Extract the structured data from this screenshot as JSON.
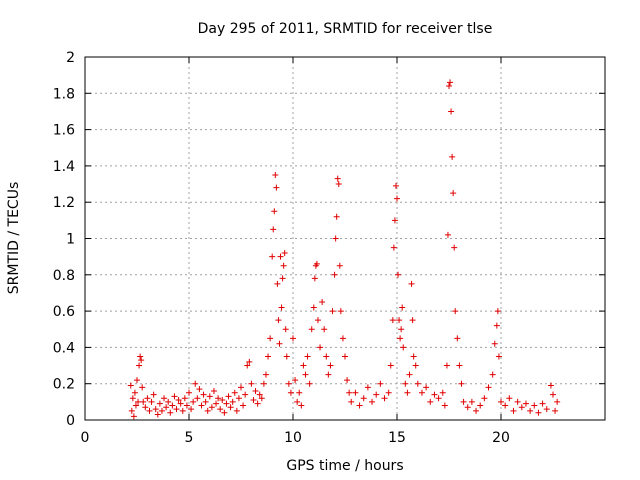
{
  "chart_data": {
    "type": "scatter",
    "title": "Day 295 of 2011, SRMTID for receiver tlse",
    "xlabel": "GPS time / hours",
    "ylabel": "SRMTID / TECUs",
    "xlim": [
      0,
      25
    ],
    "ylim": [
      0,
      2
    ],
    "xticks": [
      0,
      5,
      10,
      15,
      20
    ],
    "xtick_labels": [
      "0",
      "5",
      "10",
      "15",
      "20"
    ],
    "yticks": [
      0,
      0.2,
      0.4,
      0.6,
      0.8,
      1,
      1.2,
      1.4,
      1.6,
      1.8,
      2
    ],
    "ytick_labels": [
      "0",
      "0.2",
      "0.4",
      "0.6",
      "0.8",
      "1",
      "1.2",
      "1.4",
      "1.6",
      "1.8",
      "2"
    ],
    "grid": true,
    "marker": "+",
    "color": "#e00000",
    "series": [
      {
        "name": "SRMTID",
        "points": [
          [
            2.2,
            0.19
          ],
          [
            2.25,
            0.05
          ],
          [
            2.3,
            0.12
          ],
          [
            2.35,
            0.02
          ],
          [
            2.4,
            0.15
          ],
          [
            2.45,
            0.08
          ],
          [
            2.5,
            0.22
          ],
          [
            2.55,
            0.1
          ],
          [
            2.6,
            0.3
          ],
          [
            2.65,
            0.35
          ],
          [
            2.7,
            0.33
          ],
          [
            2.75,
            0.18
          ],
          [
            2.8,
            0.1
          ],
          [
            2.9,
            0.07
          ],
          [
            3.0,
            0.12
          ],
          [
            3.1,
            0.05
          ],
          [
            3.2,
            0.1
          ],
          [
            3.3,
            0.14
          ],
          [
            3.4,
            0.06
          ],
          [
            3.5,
            0.03
          ],
          [
            3.6,
            0.09
          ],
          [
            3.7,
            0.05
          ],
          [
            3.8,
            0.12
          ],
          [
            3.9,
            0.07
          ],
          [
            4.0,
            0.1
          ],
          [
            4.1,
            0.04
          ],
          [
            4.2,
            0.08
          ],
          [
            4.3,
            0.13
          ],
          [
            4.4,
            0.06
          ],
          [
            4.5,
            0.11
          ],
          [
            4.6,
            0.09
          ],
          [
            4.7,
            0.05
          ],
          [
            4.8,
            0.12
          ],
          [
            4.9,
            0.08
          ],
          [
            5.0,
            0.15
          ],
          [
            5.1,
            0.06
          ],
          [
            5.2,
            0.1
          ],
          [
            5.3,
            0.2
          ],
          [
            5.4,
            0.12
          ],
          [
            5.5,
            0.17
          ],
          [
            5.6,
            0.08
          ],
          [
            5.7,
            0.14
          ],
          [
            5.8,
            0.1
          ],
          [
            5.9,
            0.05
          ],
          [
            6.0,
            0.13
          ],
          [
            6.1,
            0.07
          ],
          [
            6.2,
            0.16
          ],
          [
            6.3,
            0.09
          ],
          [
            6.4,
            0.12
          ],
          [
            6.5,
            0.06
          ],
          [
            6.6,
            0.11
          ],
          [
            6.7,
            0.04
          ],
          [
            6.8,
            0.09
          ],
          [
            6.9,
            0.13
          ],
          [
            7.0,
            0.07
          ],
          [
            7.1,
            0.1
          ],
          [
            7.2,
            0.15
          ],
          [
            7.3,
            0.05
          ],
          [
            7.4,
            0.12
          ],
          [
            7.5,
            0.18
          ],
          [
            7.6,
            0.08
          ],
          [
            7.7,
            0.14
          ],
          [
            7.8,
            0.3
          ],
          [
            7.9,
            0.32
          ],
          [
            8.0,
            0.2
          ],
          [
            8.1,
            0.11
          ],
          [
            8.2,
            0.16
          ],
          [
            8.3,
            0.09
          ],
          [
            8.4,
            0.14
          ],
          [
            8.5,
            0.12
          ],
          [
            8.6,
            0.2
          ],
          [
            8.7,
            0.25
          ],
          [
            8.8,
            0.35
          ],
          [
            8.9,
            0.45
          ],
          [
            9.0,
            0.9
          ],
          [
            9.05,
            1.05
          ],
          [
            9.1,
            1.15
          ],
          [
            9.15,
            1.35
          ],
          [
            9.2,
            1.28
          ],
          [
            9.25,
            0.75
          ],
          [
            9.3,
            0.55
          ],
          [
            9.35,
            0.42
          ],
          [
            9.4,
            0.9
          ],
          [
            9.45,
            0.62
          ],
          [
            9.5,
            0.78
          ],
          [
            9.55,
            0.85
          ],
          [
            9.6,
            0.92
          ],
          [
            9.65,
            0.5
          ],
          [
            9.7,
            0.35
          ],
          [
            9.8,
            0.2
          ],
          [
            9.9,
            0.15
          ],
          [
            10.0,
            0.45
          ],
          [
            10.1,
            0.22
          ],
          [
            10.2,
            0.1
          ],
          [
            10.3,
            0.15
          ],
          [
            10.4,
            0.08
          ],
          [
            10.5,
            0.3
          ],
          [
            10.6,
            0.25
          ],
          [
            10.7,
            0.35
          ],
          [
            10.8,
            0.2
          ],
          [
            10.9,
            0.5
          ],
          [
            11.0,
            0.62
          ],
          [
            11.05,
            0.78
          ],
          [
            11.1,
            0.85
          ],
          [
            11.15,
            0.86
          ],
          [
            11.2,
            0.55
          ],
          [
            11.3,
            0.4
          ],
          [
            11.4,
            0.65
          ],
          [
            11.5,
            0.5
          ],
          [
            11.6,
            0.35
          ],
          [
            11.7,
            0.25
          ],
          [
            11.8,
            0.3
          ],
          [
            11.9,
            0.6
          ],
          [
            12.0,
            0.8
          ],
          [
            12.05,
            1.0
          ],
          [
            12.1,
            1.12
          ],
          [
            12.15,
            1.33
          ],
          [
            12.2,
            1.3
          ],
          [
            12.25,
            0.85
          ],
          [
            12.3,
            0.6
          ],
          [
            12.4,
            0.45
          ],
          [
            12.5,
            0.35
          ],
          [
            12.6,
            0.22
          ],
          [
            12.7,
            0.15
          ],
          [
            12.8,
            0.1
          ],
          [
            13.0,
            0.15
          ],
          [
            13.2,
            0.08
          ],
          [
            13.4,
            0.12
          ],
          [
            13.6,
            0.18
          ],
          [
            13.8,
            0.1
          ],
          [
            14.0,
            0.14
          ],
          [
            14.2,
            0.2
          ],
          [
            14.4,
            0.12
          ],
          [
            14.6,
            0.15
          ],
          [
            14.7,
            0.3
          ],
          [
            14.8,
            0.55
          ],
          [
            14.85,
            0.95
          ],
          [
            14.9,
            1.1
          ],
          [
            14.95,
            1.29
          ],
          [
            15.0,
            1.22
          ],
          [
            15.05,
            0.8
          ],
          [
            15.1,
            0.55
          ],
          [
            15.15,
            0.45
          ],
          [
            15.2,
            0.5
          ],
          [
            15.25,
            0.62
          ],
          [
            15.3,
            0.4
          ],
          [
            15.4,
            0.2
          ],
          [
            15.5,
            0.15
          ],
          [
            15.6,
            0.25
          ],
          [
            15.7,
            0.75
          ],
          [
            15.75,
            0.55
          ],
          [
            15.8,
            0.35
          ],
          [
            15.9,
            0.3
          ],
          [
            16.0,
            0.2
          ],
          [
            16.2,
            0.15
          ],
          [
            16.4,
            0.18
          ],
          [
            16.6,
            0.1
          ],
          [
            16.8,
            0.14
          ],
          [
            17.0,
            0.12
          ],
          [
            17.2,
            0.15
          ],
          [
            17.3,
            0.08
          ],
          [
            17.4,
            0.3
          ],
          [
            17.45,
            1.02
          ],
          [
            17.5,
            1.84
          ],
          [
            17.55,
            1.86
          ],
          [
            17.6,
            1.7
          ],
          [
            17.65,
            1.45
          ],
          [
            17.7,
            1.25
          ],
          [
            17.75,
            0.95
          ],
          [
            17.8,
            0.6
          ],
          [
            17.9,
            0.45
          ],
          [
            18.0,
            0.3
          ],
          [
            18.1,
            0.2
          ],
          [
            18.2,
            0.1
          ],
          [
            18.4,
            0.07
          ],
          [
            18.6,
            0.1
          ],
          [
            18.8,
            0.05
          ],
          [
            19.0,
            0.08
          ],
          [
            19.2,
            0.12
          ],
          [
            19.4,
            0.18
          ],
          [
            19.6,
            0.25
          ],
          [
            19.7,
            0.42
          ],
          [
            19.8,
            0.52
          ],
          [
            19.85,
            0.6
          ],
          [
            19.9,
            0.35
          ],
          [
            20.0,
            0.1
          ],
          [
            20.2,
            0.08
          ],
          [
            20.4,
            0.12
          ],
          [
            20.6,
            0.05
          ],
          [
            20.8,
            0.1
          ],
          [
            21.0,
            0.07
          ],
          [
            21.2,
            0.09
          ],
          [
            21.4,
            0.05
          ],
          [
            21.6,
            0.08
          ],
          [
            21.8,
            0.04
          ],
          [
            22.0,
            0.09
          ],
          [
            22.2,
            0.06
          ],
          [
            22.4,
            0.19
          ],
          [
            22.5,
            0.14
          ],
          [
            22.6,
            0.05
          ],
          [
            22.7,
            0.1
          ]
        ]
      }
    ]
  }
}
